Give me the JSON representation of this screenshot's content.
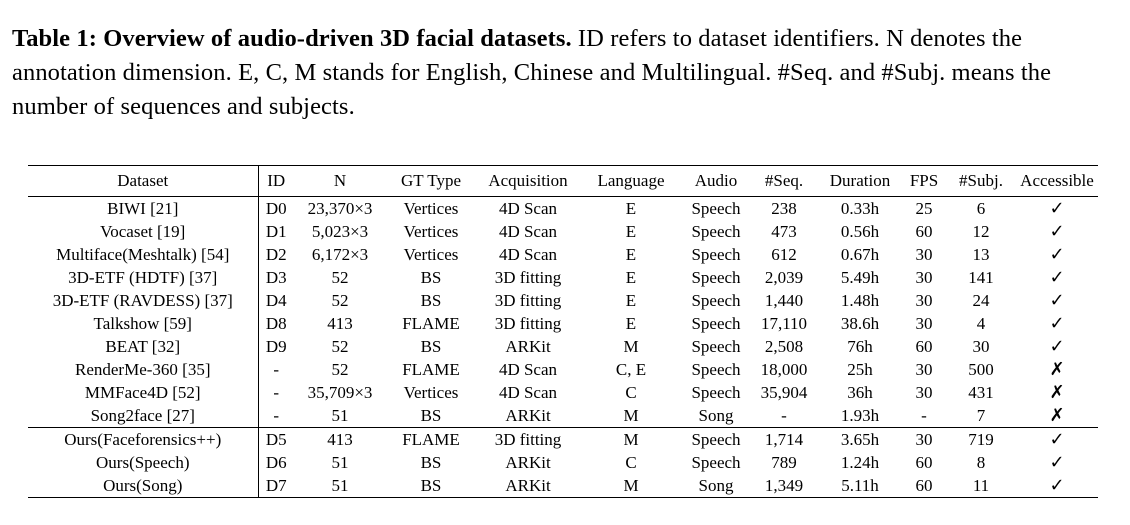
{
  "caption": {
    "lead": "Table 1: Overview of audio-driven 3D facial datasets.",
    "text": " ID refers to dataset identifiers. N denotes the annotation dimension. E, C, M stands for English, Chinese and Multilingual. #Seq. and #Subj. means the number of sequences and subjects."
  },
  "headers": [
    "Dataset",
    "ID",
    "N",
    "GT Type",
    "Acquisition",
    "Language",
    "Audio",
    "#Seq.",
    "Duration",
    "FPS",
    "#Subj.",
    "Accessible"
  ],
  "rows": [
    [
      "BIWI [21]",
      "D0",
      "23,370×3",
      "Vertices",
      "4D Scan",
      "E",
      "Speech",
      "238",
      "0.33h",
      "25",
      "6",
      "✓"
    ],
    [
      "Vocaset [19]",
      "D1",
      "5,023×3",
      "Vertices",
      "4D Scan",
      "E",
      "Speech",
      "473",
      "0.56h",
      "60",
      "12",
      "✓"
    ],
    [
      "Multiface(Meshtalk) [54]",
      "D2",
      "6,172×3",
      "Vertices",
      "4D Scan",
      "E",
      "Speech",
      "612",
      "0.67h",
      "30",
      "13",
      "✓"
    ],
    [
      "3D-ETF (HDTF) [37]",
      "D3",
      "52",
      "BS",
      "3D fitting",
      "E",
      "Speech",
      "2,039",
      "5.49h",
      "30",
      "141",
      "✓"
    ],
    [
      "3D-ETF (RAVDESS) [37]",
      "D4",
      "52",
      "BS",
      "3D fitting",
      "E",
      "Speech",
      "1,440",
      "1.48h",
      "30",
      "24",
      "✓"
    ],
    [
      "Talkshow [59]",
      "D8",
      "413",
      "FLAME",
      "3D fitting",
      "E",
      "Speech",
      "17,110",
      "38.6h",
      "30",
      "4",
      "✓"
    ],
    [
      "BEAT [32]",
      "D9",
      "52",
      "BS",
      "ARKit",
      "M",
      "Speech",
      "2,508",
      "76h",
      "60",
      "30",
      "✓"
    ],
    [
      "RenderMe-360 [35]",
      "-",
      "52",
      "FLAME",
      "4D Scan",
      "C, E",
      "Speech",
      "18,000",
      "25h",
      "30",
      "500",
      "✗"
    ],
    [
      "MMFace4D [52]",
      "-",
      "35,709×3",
      "Vertices",
      "4D Scan",
      "C",
      "Speech",
      "35,904",
      "36h",
      "30",
      "431",
      "✗"
    ],
    [
      "Song2face [27]",
      "-",
      "51",
      "BS",
      "ARKit",
      "M",
      "Song",
      "-",
      "1.93h",
      "-",
      "7",
      "✗"
    ]
  ],
  "ours_rows": [
    [
      "Ours(Faceforensics++)",
      "D5",
      "413",
      "FLAME",
      "3D fitting",
      "M",
      "Speech",
      "1,714",
      "3.65h",
      "30",
      "719",
      "✓"
    ],
    [
      "Ours(Speech)",
      "D6",
      "51",
      "BS",
      "ARKit",
      "C",
      "Speech",
      "789",
      "1.24h",
      "60",
      "8",
      "✓"
    ],
    [
      "Ours(Song)",
      "D7",
      "51",
      "BS",
      "ARKit",
      "M",
      "Song",
      "1,349",
      "5.11h",
      "60",
      "11",
      "✓"
    ]
  ]
}
